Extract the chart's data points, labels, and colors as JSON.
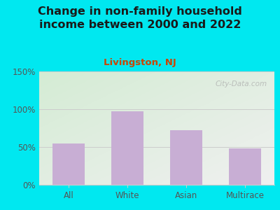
{
  "title": "Change in non-family household\nincome between 2000 and 2022",
  "subtitle": "Livingston, NJ",
  "categories": [
    "All",
    "White",
    "Asian",
    "Multirace"
  ],
  "values": [
    55,
    97,
    72,
    48
  ],
  "bar_color": "#c8aed4",
  "background_outer": "#00e8f0",
  "background_inner_topleft": "#d4ecd4",
  "background_inner_bottomright": "#f0f0f0",
  "ylim": [
    0,
    150
  ],
  "yticks": [
    0,
    50,
    100,
    150
  ],
  "ytick_labels": [
    "0%",
    "50%",
    "100%",
    "150%"
  ],
  "title_fontsize": 11.5,
  "subtitle_fontsize": 9.5,
  "title_color": "#1a1a1a",
  "subtitle_color": "#cc4400",
  "tick_color": "#555555",
  "watermark": "City-Data.com",
  "grid_color": "#cccccc",
  "bar_width": 0.55
}
